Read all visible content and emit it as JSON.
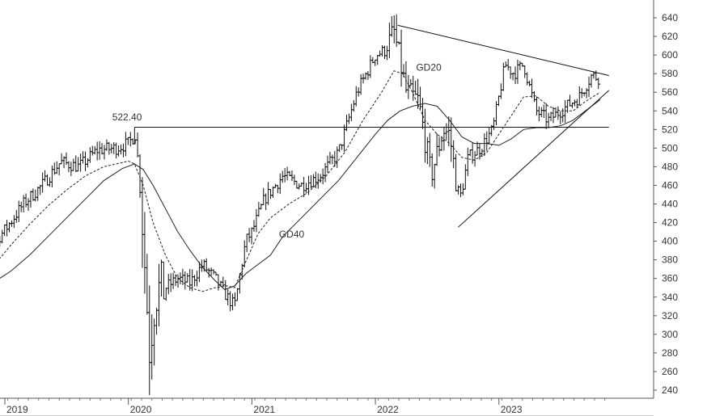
{
  "chart_data": {
    "type": "bar",
    "subtype": "ohlc-price-chart",
    "title": "",
    "xlabel": "",
    "ylabel": "",
    "ylim": [
      230,
      650
    ],
    "grid": false,
    "y_axis_side": "right",
    "y_ticks": [
      240,
      260,
      280,
      300,
      320,
      340,
      360,
      380,
      400,
      420,
      440,
      460,
      480,
      500,
      520,
      540,
      560,
      580,
      600,
      620,
      640
    ],
    "x_ticks": [
      {
        "label": "2019",
        "t": 2019.0
      },
      {
        "label": "2020",
        "t": 2020.0
      },
      {
        "label": "2021",
        "t": 2021.0
      },
      {
        "label": "2022",
        "t": 2022.0
      },
      {
        "label": "2023",
        "t": 2023.0
      }
    ],
    "xlim": [
      2018.69,
      2023.89
    ],
    "price_path": [
      [
        2018.69,
        362
      ],
      [
        2018.8,
        372
      ],
      [
        2018.9,
        396
      ],
      [
        2019.0,
        412
      ],
      [
        2019.15,
        440
      ],
      [
        2019.3,
        460
      ],
      [
        2019.45,
        485
      ],
      [
        2019.6,
        480
      ],
      [
        2019.75,
        498
      ],
      [
        2019.9,
        500
      ],
      [
        2020.0,
        505
      ],
      [
        2020.06,
        515
      ],
      [
        2020.11,
        430
      ],
      [
        2020.17,
        285
      ],
      [
        2020.22,
        345
      ],
      [
        2020.3,
        350
      ],
      [
        2020.4,
        360
      ],
      [
        2020.5,
        355
      ],
      [
        2020.6,
        375
      ],
      [
        2020.7,
        360
      ],
      [
        2020.8,
        340
      ],
      [
        2020.86,
        330
      ],
      [
        2020.95,
        400
      ],
      [
        2021.0,
        410
      ],
      [
        2021.1,
        445
      ],
      [
        2021.25,
        470
      ],
      [
        2021.4,
        460
      ],
      [
        2021.55,
        470
      ],
      [
        2021.7,
        495
      ],
      [
        2021.85,
        560
      ],
      [
        2022.0,
        600
      ],
      [
        2022.08,
        605
      ],
      [
        2022.15,
        625
      ],
      [
        2022.25,
        560
      ],
      [
        2022.35,
        550
      ],
      [
        2022.45,
        470
      ],
      [
        2022.55,
        520
      ],
      [
        2022.6,
        515
      ],
      [
        2022.68,
        440
      ],
      [
        2022.75,
        490
      ],
      [
        2022.85,
        500
      ],
      [
        2022.95,
        520
      ],
      [
        2023.05,
        590
      ],
      [
        2023.12,
        580
      ],
      [
        2023.2,
        590
      ],
      [
        2023.3,
        540
      ],
      [
        2023.4,
        530
      ],
      [
        2023.55,
        545
      ],
      [
        2023.65,
        555
      ],
      [
        2023.75,
        578
      ],
      [
        2023.82,
        575
      ]
    ],
    "series": [
      {
        "name": "GD20",
        "style": "dashed",
        "points": [
          [
            2018.69,
            356
          ],
          [
            2018.9,
            372
          ],
          [
            2019.05,
            396
          ],
          [
            2019.2,
            418
          ],
          [
            2019.35,
            438
          ],
          [
            2019.5,
            455
          ],
          [
            2019.65,
            470
          ],
          [
            2019.8,
            480
          ],
          [
            2020.0,
            486
          ],
          [
            2020.05,
            483
          ],
          [
            2020.12,
            460
          ],
          [
            2020.2,
            420
          ],
          [
            2020.3,
            385
          ],
          [
            2020.4,
            360
          ],
          [
            2020.5,
            350
          ],
          [
            2020.6,
            346
          ],
          [
            2020.7,
            350
          ],
          [
            2020.8,
            352
          ],
          [
            2020.86,
            350
          ],
          [
            2020.95,
            378
          ],
          [
            2021.05,
            408
          ],
          [
            2021.15,
            425
          ],
          [
            2021.3,
            440
          ],
          [
            2021.45,
            452
          ],
          [
            2021.6,
            470
          ],
          [
            2021.75,
            495
          ],
          [
            2021.9,
            530
          ],
          [
            2022.05,
            560
          ],
          [
            2022.15,
            583
          ],
          [
            2022.22,
            580
          ],
          [
            2022.3,
            560
          ],
          [
            2022.4,
            530
          ],
          [
            2022.5,
            515
          ],
          [
            2022.6,
            505
          ],
          [
            2022.7,
            490
          ],
          [
            2022.8,
            487
          ],
          [
            2022.9,
            495
          ],
          [
            2023.0,
            515
          ],
          [
            2023.1,
            535
          ],
          [
            2023.2,
            555
          ],
          [
            2023.3,
            556
          ],
          [
            2023.4,
            545
          ],
          [
            2023.5,
            540
          ],
          [
            2023.6,
            540
          ],
          [
            2023.7,
            550
          ],
          [
            2023.82,
            560
          ]
        ]
      },
      {
        "name": "GD40",
        "style": "solid",
        "points": [
          [
            2018.69,
            348
          ],
          [
            2018.9,
            355
          ],
          [
            2019.05,
            368
          ],
          [
            2019.2,
            385
          ],
          [
            2019.35,
            405
          ],
          [
            2019.5,
            425
          ],
          [
            2019.65,
            445
          ],
          [
            2019.8,
            465
          ],
          [
            2019.95,
            478
          ],
          [
            2020.05,
            483
          ],
          [
            2020.12,
            477
          ],
          [
            2020.2,
            460
          ],
          [
            2020.3,
            435
          ],
          [
            2020.4,
            410
          ],
          [
            2020.5,
            390
          ],
          [
            2020.6,
            372
          ],
          [
            2020.7,
            358
          ],
          [
            2020.78,
            348
          ],
          [
            2020.86,
            352
          ],
          [
            2020.95,
            365
          ],
          [
            2021.05,
            375
          ],
          [
            2021.15,
            385
          ],
          [
            2021.25,
            405
          ],
          [
            2021.4,
            425
          ],
          [
            2021.55,
            445
          ],
          [
            2021.7,
            465
          ],
          [
            2021.85,
            490
          ],
          [
            2022.0,
            515
          ],
          [
            2022.1,
            530
          ],
          [
            2022.2,
            540
          ],
          [
            2022.3,
            545
          ],
          [
            2022.4,
            548
          ],
          [
            2022.5,
            545
          ],
          [
            2022.6,
            530
          ],
          [
            2022.7,
            512
          ],
          [
            2022.8,
            505
          ],
          [
            2022.9,
            505
          ],
          [
            2023.0,
            503
          ],
          [
            2023.1,
            510
          ],
          [
            2023.2,
            520
          ],
          [
            2023.3,
            522
          ],
          [
            2023.4,
            522
          ],
          [
            2023.5,
            524
          ],
          [
            2023.6,
            530
          ],
          [
            2023.7,
            540
          ],
          [
            2023.82,
            552
          ]
        ]
      }
    ],
    "lines": [
      {
        "name": "resistance-522.40",
        "from": [
          2020.05,
          522.4
        ],
        "to": [
          2023.89,
          522.4
        ]
      },
      {
        "name": "descending-trendline",
        "from": [
          2022.18,
          632
        ],
        "to": [
          2023.89,
          578
        ]
      },
      {
        "name": "ascending-trendline",
        "from": [
          2022.67,
          415
        ],
        "to": [
          2023.89,
          562
        ]
      },
      {
        "name": "level-marker",
        "from": [
          2020.05,
          522.4
        ],
        "to": [
          2020.05,
          505
        ]
      }
    ],
    "annotations": [
      {
        "text": "522.40",
        "x": 2020.0,
        "y": 530
      },
      {
        "text": "GD20",
        "x": 2022.46,
        "y": 583
      },
      {
        "text": "GD40",
        "x": 2021.35,
        "y": 404
      }
    ]
  }
}
